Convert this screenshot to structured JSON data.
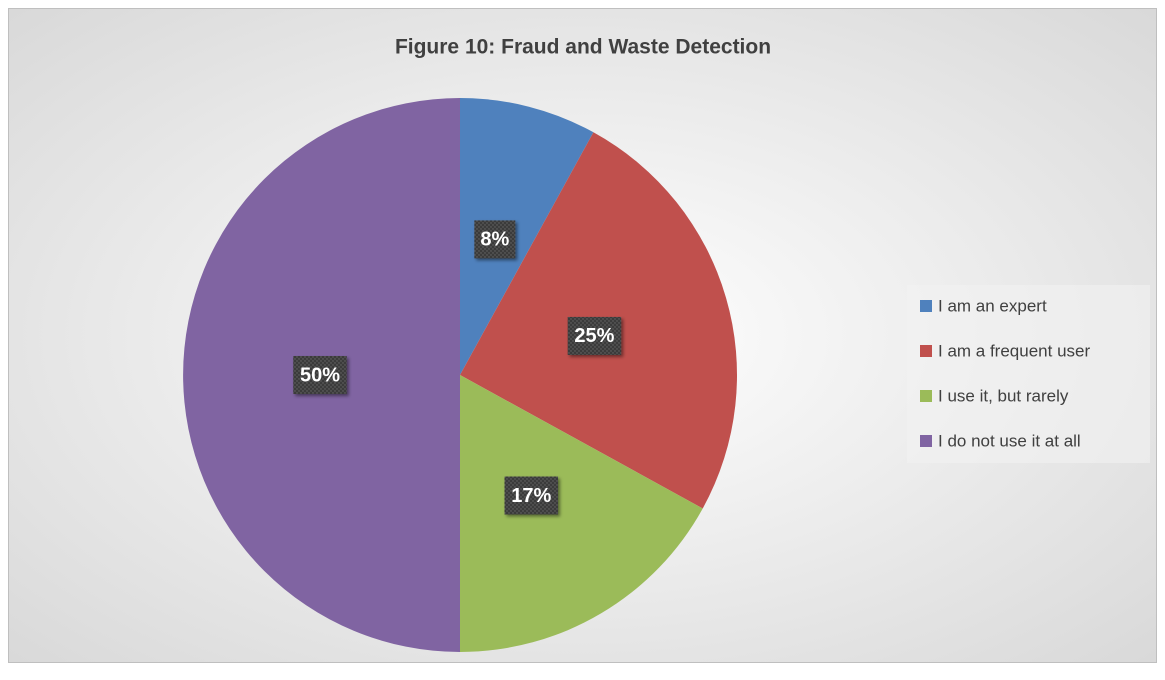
{
  "chart_data": {
    "type": "pie",
    "title": "Figure 10: Fraud and Waste Detection",
    "categories": [
      "I am an expert",
      "I am a frequent user",
      "I use it, but rarely",
      "I do not use it at all"
    ],
    "values": [
      8,
      25,
      17,
      50
    ],
    "value_labels": [
      "8%",
      "25%",
      "17%",
      "50%"
    ],
    "colors": [
      "#4f81bd",
      "#c0504d",
      "#9bbb59",
      "#8064a2"
    ],
    "legend": "right"
  }
}
